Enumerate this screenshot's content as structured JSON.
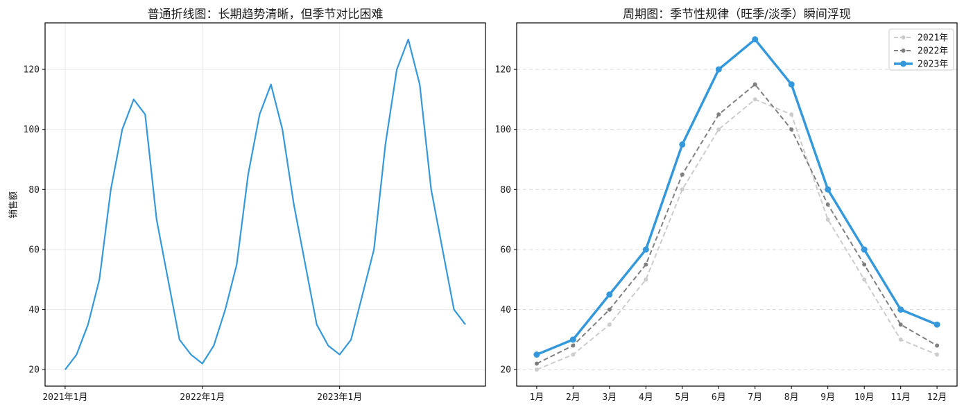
{
  "figure": {
    "background": "#ffffff",
    "text_color": "#1a1a1a",
    "accent_blue": "#3498db",
    "gray_2022": "#7f7f7f",
    "gray_2021": "#cccccc"
  },
  "chart_data": [
    {
      "type": "line",
      "title": "普通折线图：长期趋势清晰，但季节对比困难",
      "xlabel": "",
      "ylabel": "销售额",
      "yticks": [
        20,
        40,
        60,
        80,
        100,
        120
      ],
      "ylim": [
        14.5,
        135.5
      ],
      "grid": {
        "axis": "both",
        "style": "solid",
        "color": "#e8e8e8"
      },
      "xticks": [
        {
          "index": 0,
          "label": "2021年1月"
        },
        {
          "index": 12,
          "label": "2022年1月"
        },
        {
          "index": 24,
          "label": "2023年1月"
        }
      ],
      "series": [
        {
          "name": "销售额",
          "color": "#3498db",
          "dash": null,
          "marker": false,
          "line_width": 2.2,
          "values": [
            20,
            25,
            35,
            50,
            80,
            100,
            110,
            105,
            70,
            50,
            30,
            25,
            22,
            28,
            40,
            55,
            85,
            105,
            115,
            100,
            75,
            55,
            35,
            28,
            25,
            30,
            45,
            60,
            95,
            120,
            130,
            115,
            80,
            60,
            40,
            35
          ]
        }
      ]
    },
    {
      "type": "line",
      "title": "周期图：季节性规律（旺季/淡季）瞬间浮现",
      "xlabel": "",
      "ylabel": "",
      "yticks": [
        20,
        40,
        60,
        80,
        100,
        120
      ],
      "ylim": [
        14.5,
        135.5
      ],
      "grid": {
        "axis": "y",
        "style": "dashed",
        "color": "#d9d9d9"
      },
      "categories": [
        "1月",
        "2月",
        "3月",
        "4月",
        "5月",
        "6月",
        "7月",
        "8月",
        "9月",
        "10月",
        "11月",
        "12月"
      ],
      "legend_position": "upper right",
      "series": [
        {
          "name": "2021年",
          "color": "#cccccc",
          "dash": "7 4",
          "marker": true,
          "marker_size": 3,
          "line_width": 2,
          "values": [
            20,
            25,
            35,
            50,
            80,
            100,
            110,
            105,
            70,
            50,
            30,
            25
          ]
        },
        {
          "name": "2022年",
          "color": "#7f7f7f",
          "dash": "7 4",
          "marker": true,
          "marker_size": 3,
          "line_width": 2,
          "values": [
            22,
            28,
            40,
            55,
            85,
            105,
            115,
            100,
            75,
            55,
            35,
            28
          ]
        },
        {
          "name": "2023年",
          "color": "#3498db",
          "dash": null,
          "marker": true,
          "marker_size": 4.5,
          "line_width": 3.5,
          "values": [
            25,
            30,
            45,
            60,
            95,
            120,
            130,
            115,
            80,
            60,
            40,
            35
          ]
        }
      ]
    }
  ]
}
